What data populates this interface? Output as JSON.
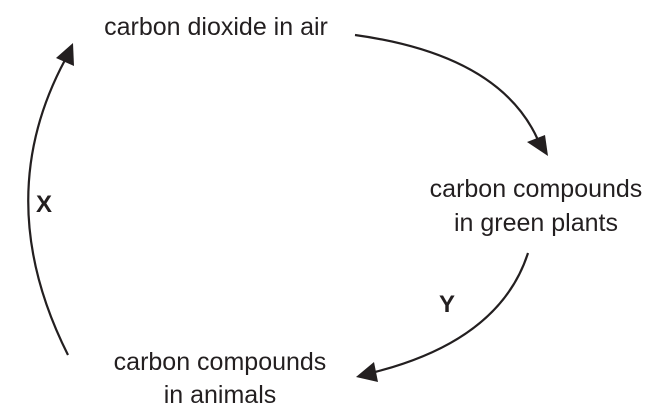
{
  "nodes": [
    {
      "lines": [
        "carbon dioxide in air"
      ]
    },
    {
      "lines": [
        "carbon compounds",
        "in green plants"
      ]
    },
    {
      "lines": [
        "carbon compounds",
        "in animals"
      ]
    }
  ],
  "edges": [
    {
      "label": "Y"
    },
    {
      "label": "X"
    }
  ]
}
